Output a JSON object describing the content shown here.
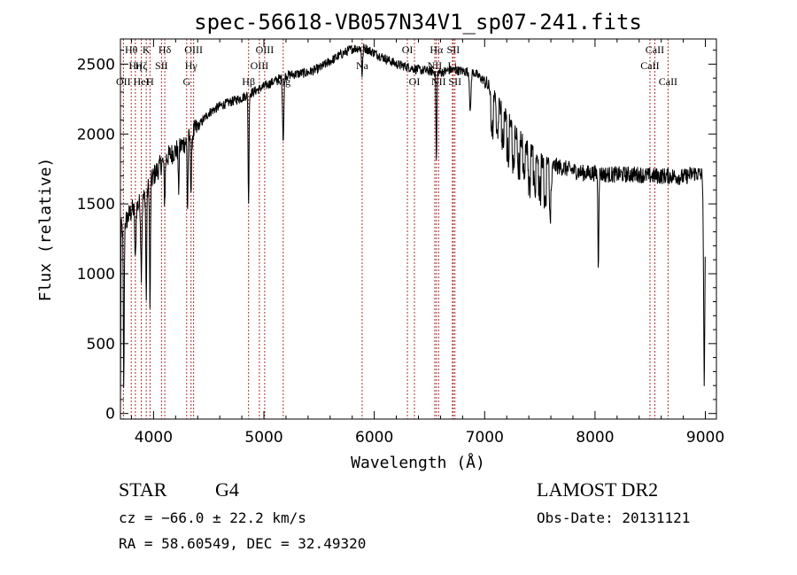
{
  "chart_data": {
    "type": "line",
    "title": "spec-56618-VB057N34V1_sp07-241.fits",
    "xlabel": "Wavelength (Å)",
    "ylabel": "Flux (relative)",
    "xlim": [
      3700,
      9100
    ],
    "ylim": [
      -40,
      2680
    ],
    "x_ticks": [
      4000,
      5000,
      6000,
      7000,
      8000,
      9000
    ],
    "y_ticks": [
      0,
      500,
      1000,
      1500,
      2000,
      2500
    ],
    "grid": false,
    "continuum": [
      [
        3700,
        1300
      ],
      [
        3800,
        1450
      ],
      [
        3900,
        1520
      ],
      [
        4000,
        1700
      ],
      [
        4100,
        1820
      ],
      [
        4200,
        1880
      ],
      [
        4300,
        1950
      ],
      [
        4400,
        2050
      ],
      [
        4500,
        2150
      ],
      [
        4600,
        2200
      ],
      [
        4700,
        2230
      ],
      [
        4800,
        2260
      ],
      [
        4900,
        2300
      ],
      [
        5000,
        2340
      ],
      [
        5100,
        2380
      ],
      [
        5200,
        2420
      ],
      [
        5300,
        2430
      ],
      [
        5400,
        2440
      ],
      [
        5500,
        2470
      ],
      [
        5600,
        2520
      ],
      [
        5700,
        2570
      ],
      [
        5800,
        2610
      ],
      [
        5900,
        2620
      ],
      [
        6000,
        2580
      ],
      [
        6100,
        2540
      ],
      [
        6200,
        2500
      ],
      [
        6300,
        2480
      ],
      [
        6400,
        2460
      ],
      [
        6500,
        2450
      ],
      [
        6600,
        2440
      ],
      [
        6700,
        2460
      ],
      [
        6800,
        2450
      ],
      [
        6900,
        2440
      ],
      [
        7000,
        2380
      ],
      [
        7100,
        2250
      ],
      [
        7200,
        2120
      ],
      [
        7300,
        2000
      ],
      [
        7400,
        1880
      ],
      [
        7500,
        1820
      ],
      [
        7600,
        1780
      ],
      [
        7700,
        1760
      ],
      [
        7800,
        1740
      ],
      [
        7900,
        1720
      ],
      [
        8000,
        1720
      ],
      [
        8100,
        1710
      ],
      [
        8200,
        1710
      ],
      [
        8300,
        1710
      ],
      [
        8400,
        1710
      ],
      [
        8500,
        1700
      ],
      [
        8600,
        1700
      ],
      [
        8700,
        1700
      ],
      [
        8800,
        1690
      ],
      [
        8900,
        1720
      ],
      [
        9000,
        1700
      ]
    ],
    "absorption_features": [
      {
        "x": 3730,
        "depth": 1200,
        "width": 4
      },
      {
        "x": 3835,
        "depth": 400,
        "width": 5
      },
      {
        "x": 3889,
        "depth": 500,
        "width": 5
      },
      {
        "x": 3934,
        "depth": 800,
        "width": 4
      },
      {
        "x": 3968,
        "depth": 900,
        "width": 4
      },
      {
        "x": 4101,
        "depth": 300,
        "width": 5
      },
      {
        "x": 4227,
        "depth": 300,
        "width": 4
      },
      {
        "x": 4308,
        "depth": 500,
        "width": 4
      },
      {
        "x": 4340,
        "depth": 400,
        "width": 5
      },
      {
        "x": 4861,
        "depth": 800,
        "width": 4
      },
      {
        "x": 5175,
        "depth": 450,
        "width": 6
      },
      {
        "x": 5890,
        "depth": 200,
        "width": 5
      },
      {
        "x": 6563,
        "depth": 650,
        "width": 4
      },
      {
        "x": 6870,
        "depth": 300,
        "width": 6
      },
      {
        "x": 7600,
        "depth": 200,
        "width": 8
      },
      {
        "x": 8030,
        "depth": 650,
        "width": 4
      },
      {
        "x": 8990,
        "depth": 1500,
        "width": 6
      }
    ],
    "reference_lines": [
      {
        "x": 3727,
        "labels": [
          "OII"
        ],
        "row": 2
      },
      {
        "x": 3798,
        "labels": [
          "Hθ"
        ],
        "row": 0
      },
      {
        "x": 3835,
        "labels": [
          "Hη"
        ],
        "row": 1
      },
      {
        "x": 3889,
        "labels": [
          "Hζ",
          "HeI"
        ],
        "row": 1
      },
      {
        "x": 3934,
        "labels": [
          "K"
        ],
        "row": 0
      },
      {
        "x": 3968,
        "labels": [
          "H"
        ],
        "row": 2
      },
      {
        "x": 4072,
        "labels": [
          "SII"
        ],
        "row": 1
      },
      {
        "x": 4102,
        "labels": [
          "Hδ"
        ],
        "row": 0
      },
      {
        "x": 4300,
        "labels": [
          "G"
        ],
        "row": 2
      },
      {
        "x": 4340,
        "labels": [
          "Hγ"
        ],
        "row": 1
      },
      {
        "x": 4363,
        "labels": [
          "OIII"
        ],
        "row": 0
      },
      {
        "x": 4861,
        "labels": [
          "Hβ"
        ],
        "row": 2
      },
      {
        "x": 4959,
        "labels": [
          "OIII"
        ],
        "row": 1
      },
      {
        "x": 5007,
        "labels": [
          "OIII"
        ],
        "row": 0
      },
      {
        "x": 5175,
        "labels": [
          "Mg"
        ],
        "row": 2
      },
      {
        "x": 5890,
        "labels": [
          "Na"
        ],
        "row": 1
      },
      {
        "x": 6300,
        "labels": [
          "OI"
        ],
        "row": 0
      },
      {
        "x": 6364,
        "labels": [
          "OI"
        ],
        "row": 2
      },
      {
        "x": 6548,
        "labels": [
          "NII"
        ],
        "row": 1
      },
      {
        "x": 6563,
        "labels": [
          "Hα"
        ],
        "row": 0
      },
      {
        "x": 6583,
        "labels": [
          "NII"
        ],
        "row": 2
      },
      {
        "x": 6708,
        "labels": [
          "Li"
        ],
        "row": 1
      },
      {
        "x": 6716,
        "labels": [
          "SII"
        ],
        "row": 0
      },
      {
        "x": 6731,
        "labels": [
          "SII"
        ],
        "row": 2
      },
      {
        "x": 8498,
        "labels": [
          "CaII"
        ],
        "row": 1
      },
      {
        "x": 8542,
        "labels": [
          "CaII"
        ],
        "row": 0
      },
      {
        "x": 8662,
        "labels": [
          "CaII"
        ],
        "row": 2
      }
    ],
    "colors": {
      "spectrum": "#000000",
      "reference_line": "#b03030",
      "axes": "#000000"
    }
  },
  "info": {
    "object_class": "STAR",
    "subclass": "G4",
    "survey": "LAMOST DR2",
    "redshift": "cz = −66.0 ± 22.2 km/s",
    "obs_date": "Obs-Date: 20131121",
    "coords": "RA =  58.60549, DEC =  32.49320"
  }
}
